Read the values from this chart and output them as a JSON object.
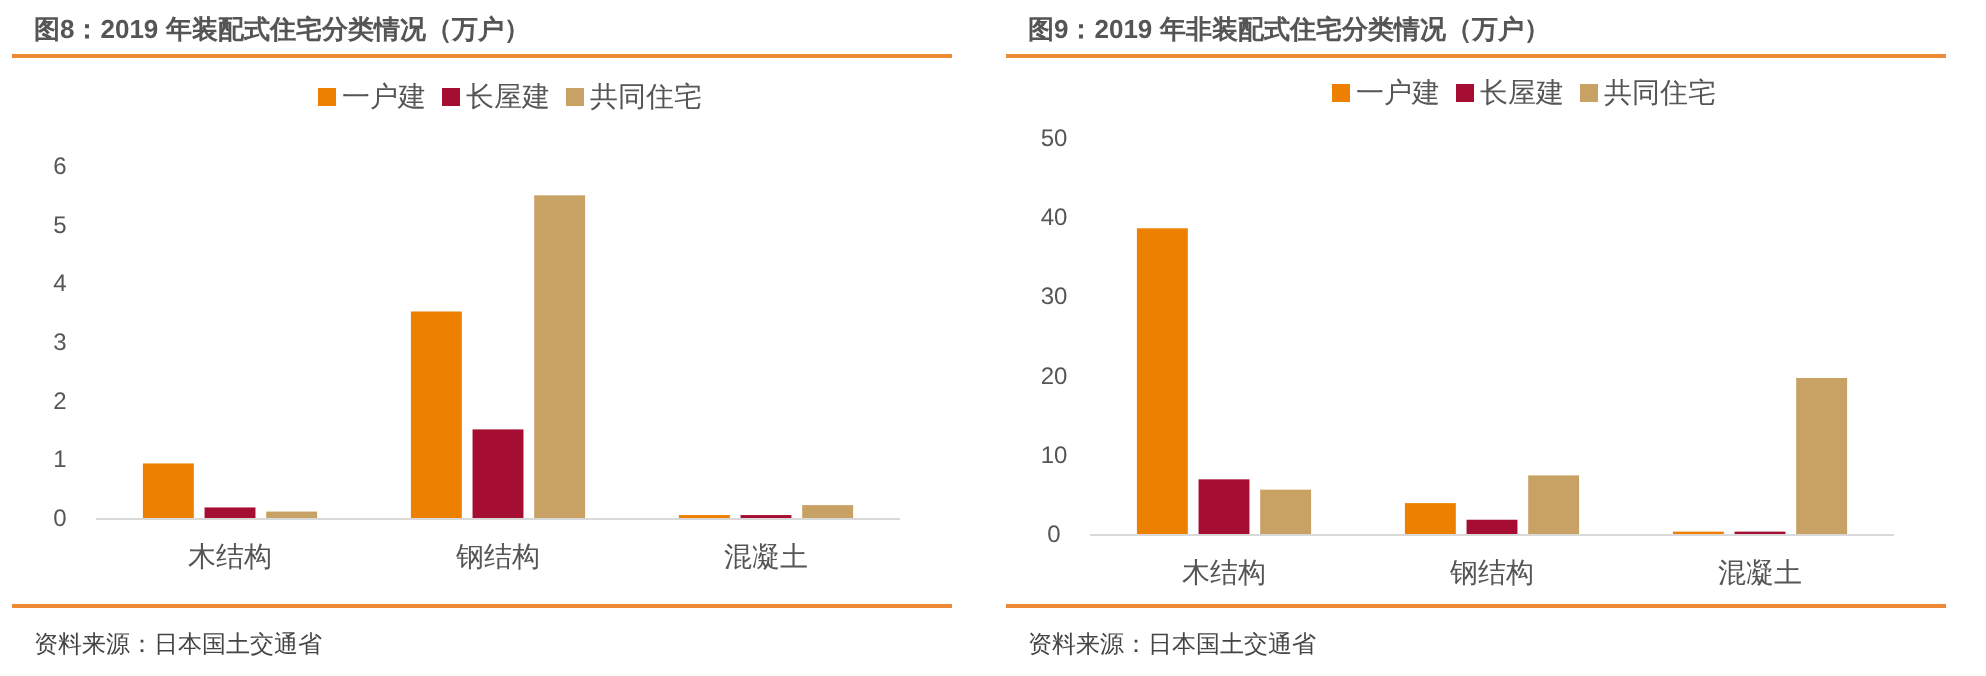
{
  "chart_data": [
    {
      "type": "bar",
      "title": "图8：2019 年装配式住宅分类情况（万户）",
      "categories": [
        "木结构",
        "钢结构",
        "混凝土"
      ],
      "series": [
        {
          "name": "一户建",
          "color": "#ed8000",
          "values": [
            0.93,
            3.52,
            0.05
          ]
        },
        {
          "name": "长屋建",
          "color": "#a50d32",
          "values": [
            0.18,
            1.51,
            0.05
          ]
        },
        {
          "name": "共同住宅",
          "color": "#c8a265",
          "values": [
            0.11,
            5.5,
            0.22
          ]
        }
      ],
      "ylim": [
        0,
        6
      ],
      "yticks": [
        0,
        1,
        2,
        3,
        4,
        5,
        6
      ],
      "grid": false,
      "legend": "top",
      "annotations": [
        "资料来源：日本国土交通省"
      ]
    },
    {
      "type": "bar",
      "title": "图9：2019 年非装配式住宅分类情况（万户）",
      "categories": [
        "木结构",
        "钢结构",
        "混凝土"
      ],
      "series": [
        {
          "name": "一户建",
          "color": "#ed8000",
          "values": [
            38.6,
            3.9,
            0.3
          ]
        },
        {
          "name": "长屋建",
          "color": "#a50d32",
          "values": [
            6.9,
            1.8,
            0.3
          ]
        },
        {
          "name": "共同住宅",
          "color": "#c8a265",
          "values": [
            5.6,
            7.4,
            19.7
          ]
        }
      ],
      "ylim": [
        0,
        50
      ],
      "yticks": [
        0,
        10,
        20,
        30,
        40,
        50
      ],
      "grid": false,
      "legend": "top",
      "annotations": [
        "资料来源：日本国土交通省"
      ]
    }
  ]
}
